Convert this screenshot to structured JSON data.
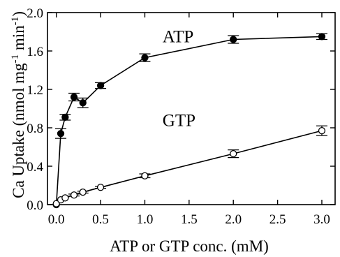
{
  "chart_data": {
    "type": "scatter",
    "title": "",
    "xlabel": "ATP or GTP conc. (mM)",
    "ylabel": "Ca Uptake (nmol mg-1 min-1)",
    "ylabel_parts": [
      "Ca Uptake (nmol mg",
      "-1",
      " min",
      "-1",
      ")"
    ],
    "xlim": [
      -0.1,
      3.15
    ],
    "ylim": [
      0,
      2.0
    ],
    "x_ticks": [
      "0.0",
      "0.5",
      "1.0",
      "1.5",
      "2.0",
      "2.5",
      "3.0"
    ],
    "y_ticks": [
      "0.0",
      "0.4",
      "0.8",
      "1.2",
      "1.6",
      "2.0"
    ],
    "grid": false,
    "series": [
      {
        "name": "ATP",
        "marker": "filled-circle",
        "label_at": [
          1.2,
          1.69
        ],
        "points": [
          {
            "x": 0.0,
            "y": 0.0,
            "err": 0.0
          },
          {
            "x": 0.05,
            "y": 0.74,
            "err": 0.05
          },
          {
            "x": 0.1,
            "y": 0.91,
            "err": 0.03
          },
          {
            "x": 0.2,
            "y": 1.12,
            "err": 0.04
          },
          {
            "x": 0.3,
            "y": 1.06,
            "err": 0.05
          },
          {
            "x": 0.5,
            "y": 1.24,
            "err": 0.03
          },
          {
            "x": 1.0,
            "y": 1.53,
            "err": 0.04
          },
          {
            "x": 2.0,
            "y": 1.72,
            "err": 0.04
          },
          {
            "x": 3.0,
            "y": 1.75,
            "err": 0.03
          }
        ]
      },
      {
        "name": "GTP",
        "marker": "open-circle",
        "label_at": [
          1.2,
          0.82
        ],
        "points": [
          {
            "x": 0.0,
            "y": 0.01,
            "err": 0.0
          },
          {
            "x": 0.05,
            "y": 0.05,
            "err": 0.0
          },
          {
            "x": 0.1,
            "y": 0.07,
            "err": 0.0
          },
          {
            "x": 0.2,
            "y": 0.1,
            "err": 0.01
          },
          {
            "x": 0.3,
            "y": 0.13,
            "err": 0.01
          },
          {
            "x": 0.5,
            "y": 0.18,
            "err": 0.01
          },
          {
            "x": 1.0,
            "y": 0.3,
            "err": 0.02
          },
          {
            "x": 2.0,
            "y": 0.53,
            "err": 0.04
          },
          {
            "x": 3.0,
            "y": 0.77,
            "err": 0.05
          }
        ]
      }
    ]
  }
}
